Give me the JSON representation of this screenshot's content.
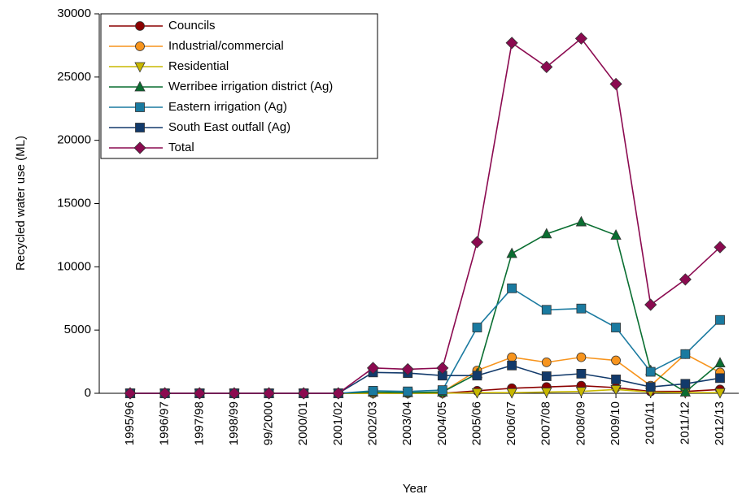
{
  "chart_data": {
    "type": "line",
    "x_label": "Year",
    "y_label": "Recycled water use (ML)",
    "categories": [
      "1995/96",
      "1996/97",
      "1997/98",
      "1998/99",
      "99/2000",
      "2000/01",
      "2001/02",
      "2002/03",
      "2003/04",
      "2004/05",
      "2005/06",
      "2006/07",
      "2007/08",
      "2008/09",
      "2009/10",
      "2010/11",
      "2011/12",
      "2012/13"
    ],
    "ylim": [
      0,
      30000
    ],
    "yticks": [
      0,
      5000,
      10000,
      15000,
      20000,
      25000,
      30000
    ],
    "legend": "upper-left",
    "series": [
      {
        "name": "Councils",
        "color": "#8b0000",
        "marker": "circle",
        "values": [
          0,
          0,
          0,
          0,
          0,
          0,
          0,
          0,
          0,
          0,
          200,
          400,
          500,
          600,
          450,
          150,
          150,
          300
        ]
      },
      {
        "name": "Industrial/commercial",
        "color": "#f7941d",
        "marker": "circle",
        "values": [
          0,
          0,
          0,
          0,
          0,
          0,
          0,
          0,
          0,
          100,
          1800,
          2850,
          2450,
          2850,
          2600,
          600,
          3100,
          1650
        ]
      },
      {
        "name": "Residential",
        "color": "#c8b800",
        "marker": "triangle-down",
        "values": [
          0,
          0,
          0,
          0,
          0,
          0,
          0,
          0,
          0,
          0,
          50,
          50,
          100,
          150,
          300,
          100,
          50,
          50
        ]
      },
      {
        "name": "Werribee irrigation district (Ag)",
        "color": "#0a6e31",
        "marker": "triangle-up",
        "values": [
          0,
          0,
          0,
          0,
          0,
          0,
          0,
          100,
          50,
          100,
          1550,
          11050,
          12600,
          13550,
          12500,
          1800,
          100,
          2400
        ]
      },
      {
        "name": "Eastern irrigation (Ag)",
        "color": "#1a7aa0",
        "marker": "square",
        "values": [
          0,
          0,
          0,
          0,
          0,
          0,
          0,
          200,
          150,
          250,
          5200,
          8300,
          6600,
          6700,
          5200,
          1700,
          3100,
          5800
        ]
      },
      {
        "name": "South East outfall (Ag)",
        "color": "#123a6b",
        "marker": "square",
        "values": [
          0,
          0,
          0,
          0,
          0,
          0,
          0,
          1650,
          1600,
          1400,
          1400,
          2200,
          1350,
          1550,
          1100,
          500,
          750,
          1200
        ]
      },
      {
        "name": "Total",
        "color": "#8b0a50",
        "marker": "diamond",
        "values": [
          0,
          0,
          0,
          0,
          0,
          0,
          0,
          2000,
          1900,
          2000,
          11950,
          27700,
          25800,
          28050,
          24450,
          7000,
          9000,
          11550
        ]
      }
    ]
  }
}
